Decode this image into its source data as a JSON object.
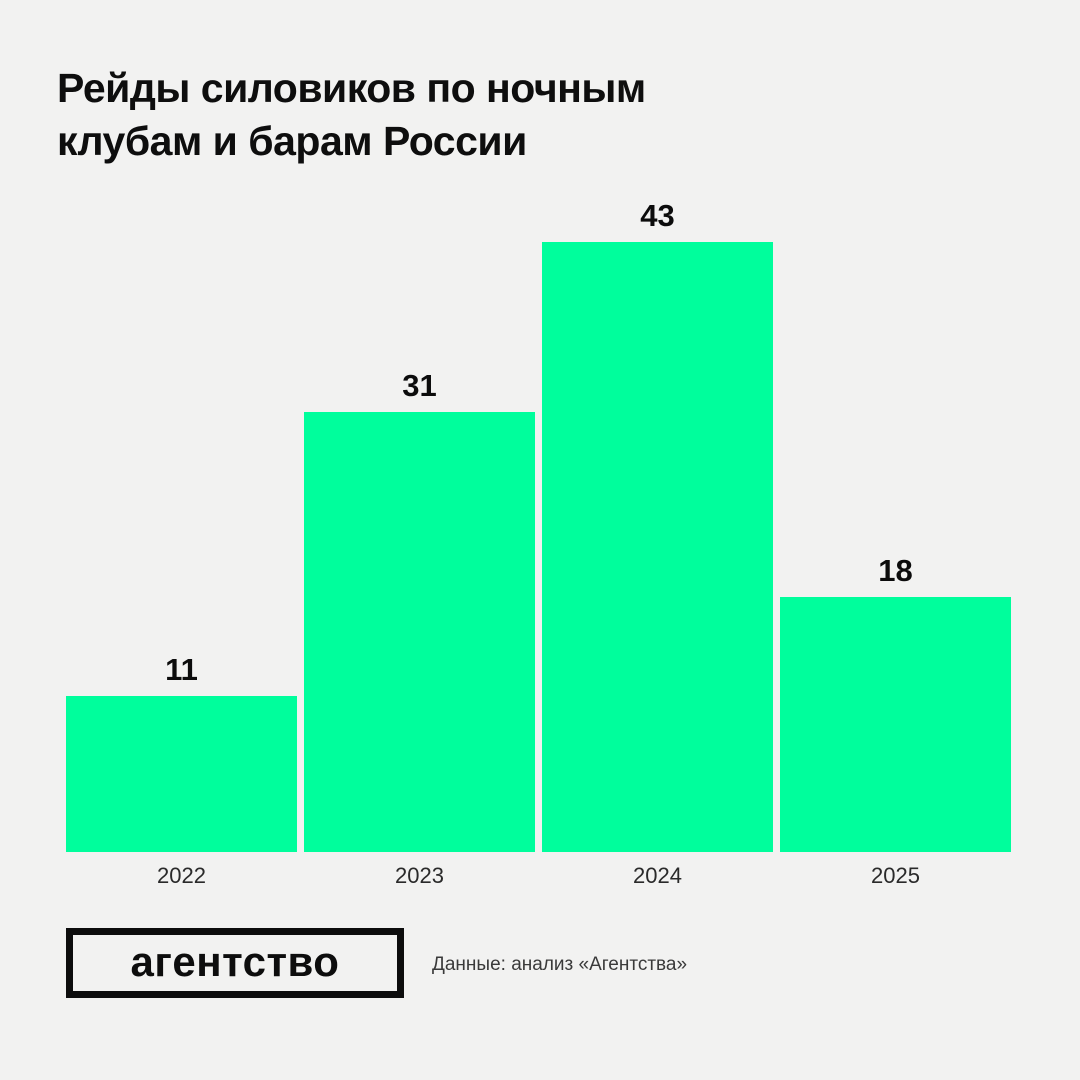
{
  "chart_data": {
    "type": "bar",
    "title": "Рейды силовиков по ночным\nклубам и барам России",
    "categories": [
      "2022",
      "2023",
      "2024",
      "2025"
    ],
    "values": [
      11,
      31,
      43,
      18
    ],
    "xlabel": "",
    "ylabel": "",
    "ylim": [
      0,
      43
    ],
    "grid": false,
    "legend": "none",
    "value_labels_position": "above-bars",
    "bar_color": "#00FE9C",
    "label_color": "#0C0C0C",
    "background_color": "#F2F2F1"
  },
  "footer": {
    "logo_text": "агентство",
    "source": "Данные: анализ «Агентства»"
  }
}
